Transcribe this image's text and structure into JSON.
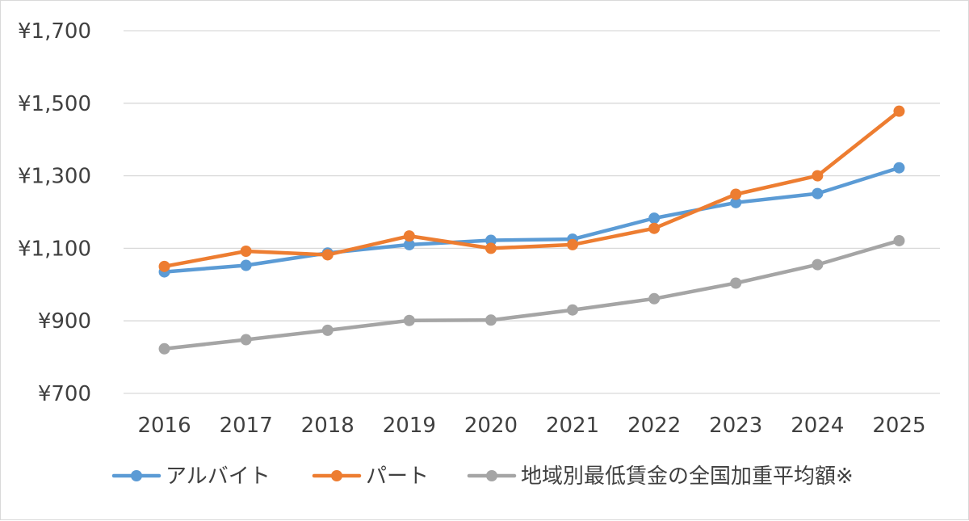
{
  "chart_data": {
    "type": "line",
    "title": "",
    "xlabel": "",
    "ylabel": "",
    "ylim": [
      700,
      1700
    ],
    "y_ticks": [
      700,
      900,
      1100,
      1300,
      1500,
      1700
    ],
    "y_tick_labels": [
      "¥700",
      "¥900",
      "¥1,100",
      "¥1,300",
      "¥1,500",
      "¥1,700"
    ],
    "categories": [
      "2016",
      "2017",
      "2018",
      "2019",
      "2020",
      "2021",
      "2022",
      "2023",
      "2024",
      "2025"
    ],
    "grid": true,
    "legend_position": "bottom",
    "series": [
      {
        "name": "アルバイト",
        "color": "#5b9bd5",
        "values": [
          1035,
          1053,
          1087,
          1110,
          1122,
          1125,
          1183,
          1226,
          1251,
          1322
        ]
      },
      {
        "name": "パート",
        "color": "#ed7d31",
        "values": [
          1050,
          1092,
          1082,
          1134,
          1100,
          1110,
          1155,
          1249,
          1300,
          1478
        ]
      },
      {
        "name": "地域別最低賃金の全国加重平均額※",
        "color": "#a5a5a5",
        "values": [
          823,
          848,
          874,
          901,
          902,
          930,
          961,
          1004,
          1055,
          1121
        ]
      }
    ]
  }
}
